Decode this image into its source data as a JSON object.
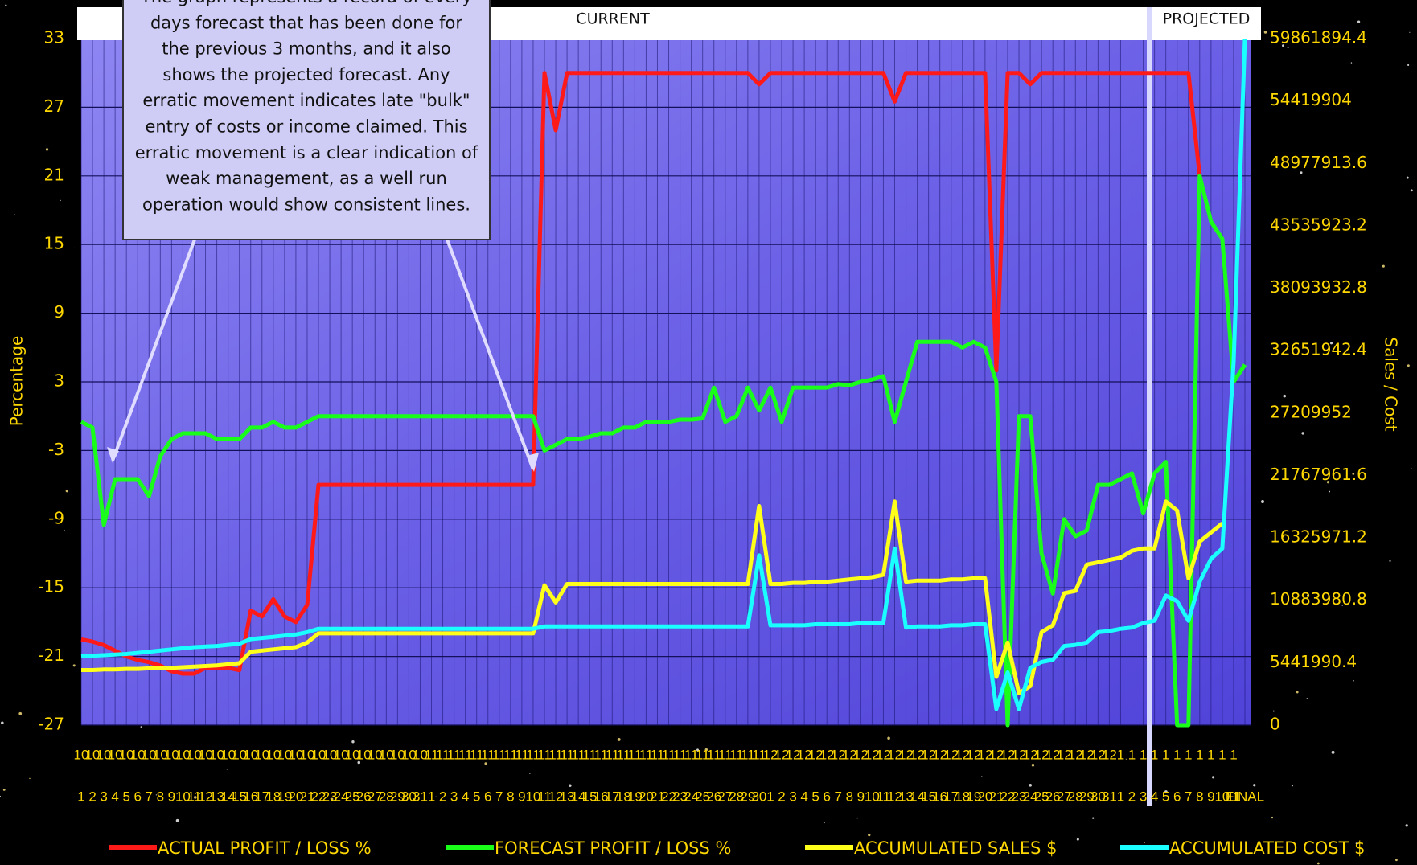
{
  "chart_data": {
    "type": "line",
    "header_labels": [
      "CURRENT",
      "PROJECTED"
    ],
    "annotation_lines": [
      "The graph represents a record of every",
      "days forecast that has been done for",
      "the previous 3 months, and it also",
      "shows the projected forecast. Any",
      "erratic movement indicates late \"bulk\"",
      "entry of costs or income claimed. This",
      "erratic movement is a clear indication of",
      "weak management, as a well run",
      "operation would show consistent lines."
    ],
    "ylabel": "Percentage",
    "y2label": "Sales / Cost",
    "ylim": [
      -27,
      33
    ],
    "yticks": [
      -27,
      -21,
      -15,
      -9,
      -3,
      3,
      9,
      15,
      21,
      27,
      33
    ],
    "y2lim": [
      0,
      59861894.4
    ],
    "y2ticks": [
      0,
      5441990.4,
      10883980.8,
      16325971.2,
      21767961.6,
      27209952,
      32651942.4,
      38093932.8,
      43535923.2,
      48977913.6,
      54419904,
      59861894.4
    ],
    "grid": true,
    "legend": "bottom",
    "category_groups": [
      "10",
      "10",
      "10",
      "10",
      "10",
      "10",
      "10",
      "10",
      "10",
      "10",
      "10",
      "10",
      "10",
      "10",
      "10",
      "10",
      "10",
      "10",
      "10",
      "10",
      "10",
      "10",
      "10",
      "10",
      "10",
      "10",
      "10",
      "10",
      "10",
      "10",
      "10",
      "11",
      "11",
      "11",
      "11",
      "11",
      "11",
      "11",
      "11",
      "11",
      "11",
      "11",
      "11",
      "11",
      "11",
      "11",
      "11",
      "11",
      "11",
      "11",
      "11",
      "11",
      "11",
      "11",
      "11",
      "11",
      "11",
      "11",
      "11",
      "11",
      "11",
      "12",
      "12",
      "12",
      "12",
      "12",
      "12",
      "12",
      "12",
      "12",
      "12",
      "12",
      "12",
      "12",
      "12",
      "12",
      "12",
      "12",
      "12",
      "12",
      "12",
      "12",
      "12",
      "12",
      "12",
      "12",
      "12",
      "12",
      "12",
      "12",
      "12",
      "12",
      "1",
      "1",
      "1",
      "1",
      "1",
      "1",
      "1",
      "1",
      "1",
      "1",
      "1",
      null
    ],
    "categories": [
      "1",
      "2",
      "3",
      "4",
      "5",
      "6",
      "7",
      "8",
      "9",
      "10",
      "11",
      "12",
      "13",
      "14",
      "15",
      "16",
      "17",
      "18",
      "19",
      "20",
      "21",
      "22",
      "23",
      "24",
      "25",
      "26",
      "27",
      "28",
      "29",
      "30",
      "31",
      "1",
      "2",
      "3",
      "4",
      "5",
      "6",
      "7",
      "8",
      "9",
      "10",
      "11",
      "12",
      "13",
      "14",
      "15",
      "16",
      "17",
      "18",
      "19",
      "20",
      "21",
      "22",
      "23",
      "24",
      "25",
      "26",
      "27",
      "28",
      "29",
      "30",
      "1",
      "2",
      "3",
      "4",
      "5",
      "6",
      "7",
      "8",
      "9",
      "10",
      "11",
      "12",
      "13",
      "14",
      "15",
      "16",
      "17",
      "18",
      "19",
      "20",
      "21",
      "22",
      "23",
      "24",
      "25",
      "26",
      "27",
      "28",
      "29",
      "30",
      "31",
      "1",
      "2",
      "3",
      "4",
      "5",
      "6",
      "7",
      "8",
      "9",
      "10",
      "11",
      "FINAL"
    ],
    "series": [
      {
        "name": "ACTUAL PROFIT / LOSS %",
        "color": "#ff1a1a",
        "axis": "y",
        "values": [
          -19.5,
          -19.7,
          -20,
          -20.5,
          -21,
          -21.3,
          -21.5,
          -21.8,
          -22.3,
          -22.5,
          -22.5,
          -22,
          -22,
          -22,
          -22.2,
          -17,
          -17.5,
          -16,
          -17.5,
          -18,
          -16.5,
          -6,
          -6,
          -6,
          -6,
          -6,
          -6,
          -6,
          -6,
          -6,
          -6,
          -6,
          -6,
          -6,
          -6,
          -6,
          -6,
          -6,
          -6,
          -6,
          -6,
          30,
          25,
          30,
          30,
          30,
          30,
          30,
          30,
          30,
          30,
          30,
          30,
          30,
          30,
          30,
          30,
          30,
          30,
          30,
          29,
          30,
          30,
          30,
          30,
          30,
          30,
          30,
          30,
          30,
          30,
          30,
          27.5,
          30,
          30,
          30,
          30,
          30,
          30,
          30,
          30,
          4,
          30,
          30,
          29,
          30,
          30,
          30,
          30,
          30,
          30,
          30,
          30,
          30,
          30,
          30,
          30,
          30,
          30,
          21,
          null,
          null,
          null,
          null
        ]
      },
      {
        "name": "FORECAST PROFIT / LOSS %",
        "color": "#1aff1a",
        "axis": "y",
        "values": [
          -0.5,
          -1,
          -9.5,
          -5.5,
          -5.5,
          -5.5,
          -7,
          -3.5,
          -2,
          -1.5,
          -1.5,
          -1.5,
          -2,
          -2,
          -2,
          -1,
          -1,
          -0.5,
          -1,
          -1,
          -0.5,
          0,
          0,
          0,
          0,
          0,
          0,
          0,
          0,
          0,
          0,
          0,
          0,
          0,
          0,
          0,
          0,
          0,
          0,
          0,
          0,
          -3,
          -2.5,
          -2,
          -2,
          -1.8,
          -1.5,
          -1.5,
          -1,
          -1,
          -0.5,
          -0.5,
          -0.5,
          -0.3,
          -0.3,
          -0.2,
          2.5,
          -0.5,
          0,
          2.5,
          0.5,
          2.5,
          -0.5,
          2.5,
          2.5,
          2.5,
          2.5,
          2.8,
          2.7,
          3,
          3.2,
          3.5,
          -0.5,
          3,
          6.5,
          6.5,
          6.5,
          6.5,
          6,
          6.5,
          6,
          3,
          -27,
          0,
          0,
          -12,
          -15.5,
          -9,
          -10.5,
          -10,
          -6,
          -6,
          -5.5,
          -5,
          -8.5,
          -5,
          -4,
          -27,
          -27,
          21,
          17,
          15.5,
          3,
          4.5
        ]
      },
      {
        "name": "ACCUMULATED SALES $",
        "color": "#ffff1a",
        "axis": "y2",
        "values": [
          4800000,
          4800000,
          4850000,
          4850000,
          4900000,
          4900000,
          4950000,
          5000000,
          5000000,
          5050000,
          5100000,
          5150000,
          5200000,
          5300000,
          5400000,
          6400000,
          6500000,
          6600000,
          6700000,
          6800000,
          7200000,
          8000000,
          8000000,
          8000000,
          8000000,
          8000000,
          8000000,
          8000000,
          8000000,
          8000000,
          8000000,
          8000000,
          8000000,
          8000000,
          8000000,
          8000000,
          8000000,
          8000000,
          8000000,
          8000000,
          8000000,
          12200000,
          10700000,
          12300000,
          12300000,
          12300000,
          12300000,
          12300000,
          12300000,
          12300000,
          12300000,
          12300000,
          12300000,
          12300000,
          12300000,
          12300000,
          12300000,
          12300000,
          12300000,
          12300000,
          19100000,
          12300000,
          12300000,
          12400000,
          12400000,
          12500000,
          12500000,
          12600000,
          12700000,
          12800000,
          12900000,
          13100000,
          19500000,
          12500000,
          12600000,
          12600000,
          12600000,
          12700000,
          12700000,
          12800000,
          12800000,
          4200000,
          7200000,
          2800000,
          3400000,
          8100000,
          8700000,
          11500000,
          11700000,
          14000000,
          14200000,
          14400000,
          14600000,
          15200000,
          15400000,
          15400000,
          19500000,
          18700000,
          12800000,
          16000000,
          16800000,
          17600000,
          null,
          null
        ]
      },
      {
        "name": "ACCUMULATED COST $",
        "color": "#1affff",
        "axis": "y2",
        "values": [
          6000000,
          6050000,
          6100000,
          6150000,
          6200000,
          6300000,
          6400000,
          6500000,
          6600000,
          6700000,
          6800000,
          6850000,
          6900000,
          7000000,
          7100000,
          7500000,
          7600000,
          7700000,
          7800000,
          7900000,
          8100000,
          8400000,
          8400000,
          8400000,
          8400000,
          8400000,
          8400000,
          8400000,
          8400000,
          8400000,
          8400000,
          8400000,
          8400000,
          8400000,
          8400000,
          8400000,
          8400000,
          8400000,
          8400000,
          8400000,
          8400000,
          8600000,
          8600000,
          8600000,
          8600000,
          8600000,
          8600000,
          8600000,
          8600000,
          8600000,
          8600000,
          8600000,
          8600000,
          8600000,
          8600000,
          8600000,
          8600000,
          8600000,
          8600000,
          8600000,
          14800000,
          8700000,
          8700000,
          8700000,
          8700000,
          8800000,
          8800000,
          8800000,
          8800000,
          8900000,
          8900000,
          8900000,
          15400000,
          8500000,
          8600000,
          8600000,
          8600000,
          8700000,
          8700000,
          8800000,
          8800000,
          1400000,
          4600000,
          1400000,
          5000000,
          5500000,
          5700000,
          6900000,
          7000000,
          7200000,
          8100000,
          8200000,
          8400000,
          8500000,
          8900000,
          9100000,
          11300000,
          10800000,
          9100000,
          12500000,
          14500000,
          15400000,
          31700000,
          59800000
        ]
      }
    ]
  }
}
